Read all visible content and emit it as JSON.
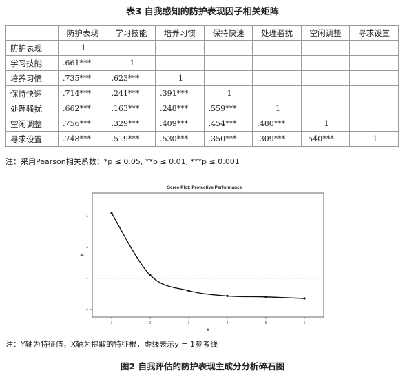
{
  "table": {
    "title": "表3 自我感知的防护表现因子相关矩阵",
    "columns": [
      "防护表现",
      "学习技能",
      "培养习惯",
      "保持快速",
      "处理骚扰",
      "空闲调整",
      "寻求设置"
    ],
    "rows": [
      {
        "label": "防护表现",
        "cells": [
          "1",
          "",
          "",
          "",
          "",
          "",
          ""
        ]
      },
      {
        "label": "学习技能",
        "cells": [
          ".661***",
          "1",
          "",
          "",
          "",
          "",
          ""
        ]
      },
      {
        "label": "培养习惯",
        "cells": [
          ".735***",
          ".623***",
          "1",
          "",
          "",
          "",
          ""
        ]
      },
      {
        "label": "保持快速",
        "cells": [
          ".714***",
          ".241***",
          ".391***",
          "1",
          "",
          "",
          ""
        ]
      },
      {
        "label": "处理骚扰",
        "cells": [
          ".662***",
          ".163***",
          ".248***",
          ".559***",
          "1",
          "",
          ""
        ]
      },
      {
        "label": "空闲调整",
        "cells": [
          ".756***",
          ".329***",
          ".409***",
          ".454***",
          ".480***",
          "1",
          ""
        ]
      },
      {
        "label": "寻求设置",
        "cells": [
          ".748***",
          ".519***",
          ".530***",
          ".350***",
          ".309***",
          ".540***",
          "1"
        ]
      }
    ],
    "note": "注：采用Pearson相关系数；*p ≤ 0.05, **p ≤ 0.01, ***p ≤ 0.001"
  },
  "figure": {
    "note": "注：Y轴为特征值，X轴为提取的特征根，虚线表示y = 1参考线",
    "caption": "图2 自我评估的防护表现主成分分析碎石图"
  },
  "chart_data": {
    "type": "line",
    "title": "Scree Plot: Protective Performance",
    "xlabel": "x",
    "ylabel": "y",
    "x": [
      1,
      2,
      3,
      4,
      5,
      6
    ],
    "series": [
      {
        "values": [
          3.1,
          1.1,
          0.6,
          0.43,
          0.4,
          0.35
        ]
      }
    ],
    "xticks": [
      "1",
      "2",
      "3",
      "4",
      "5",
      "6"
    ],
    "yticks": [
      "0",
      "1",
      "2",
      "3"
    ],
    "xlim": [
      0.5,
      6.5
    ],
    "ylim": [
      -0.25,
      3.75
    ],
    "reference_line": {
      "y": 1,
      "style": "dashed"
    },
    "grid": false,
    "line_color": "#111111",
    "reference_color": "#888888"
  }
}
